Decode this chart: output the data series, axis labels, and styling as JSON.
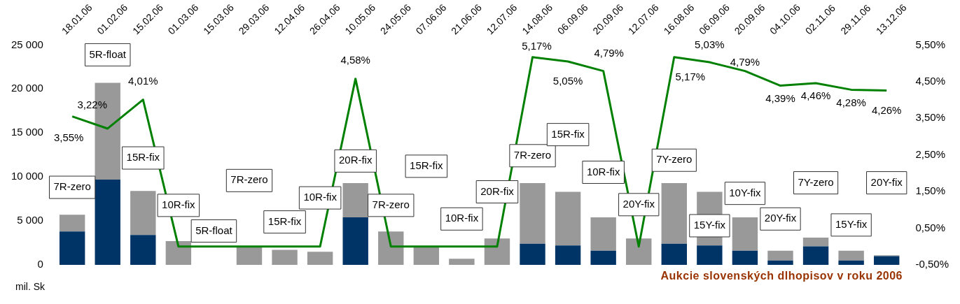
{
  "chart_data": {
    "type": "bar",
    "title": "Aukcie slovenských dlhopisov v roku 2006",
    "ylabel": "mil. Sk",
    "categories": [
      "18.01.06",
      "01.02.06",
      "15.02.06",
      "01.03.06",
      "15.03.06",
      "29.03.06",
      "12.04.06",
      "26.04.06",
      "10.05.06",
      "24.05.06",
      "07.06.06",
      "21.06.06",
      "12.07.06",
      "14.08.06",
      "06.09.06",
      "20.09.06",
      "12.07.06",
      "16.08.06",
      "06.09.06",
      "20.09.06",
      "04.10.06",
      "02.11.06",
      "29.11.06",
      "13.12.06"
    ],
    "stacked": true,
    "series": [
      {
        "color": "#003366",
        "values": [
          3800,
          9700,
          3400,
          0,
          null,
          0,
          0,
          0,
          5400,
          0,
          0,
          0,
          0,
          2400,
          2200,
          1600,
          0,
          2400,
          2200,
          1600,
          500,
          2100,
          500,
          1000
        ]
      },
      {
        "color": "#999999",
        "values": [
          1900,
          11000,
          5000,
          2700,
          null,
          2100,
          1700,
          1500,
          3900,
          3800,
          2000,
          700,
          3000,
          6900,
          6100,
          3800,
          3000,
          6900,
          6100,
          3800,
          1100,
          1000,
          1100,
          100
        ]
      },
      {
        "type": "line",
        "axis": "y2",
        "color": "#008000",
        "values": [
          3.55,
          3.22,
          4.01,
          0,
          0,
          0,
          0,
          0,
          4.58,
          0,
          0,
          0,
          0,
          5.17,
          5.05,
          4.79,
          0,
          5.17,
          5.03,
          4.79,
          4.39,
          4.46,
          4.28,
          4.26
        ],
        "value_labels": [
          "3,55%",
          "3,22%",
          "4,01%",
          null,
          null,
          null,
          null,
          null,
          "4,58%",
          null,
          null,
          null,
          null,
          "5,17%",
          "5,05%",
          "4,79%",
          null,
          "5,17%",
          "5,03%",
          "4,79%",
          "4,39%",
          "4,46%",
          "4,28%",
          "4,26%"
        ]
      }
    ],
    "ylim": [
      0,
      25000
    ],
    "yticks": [
      0,
      {
        "value": 5000,
        "label": "5 000"
      },
      {
        "value": 10000,
        "label": "10 000"
      },
      {
        "value": 15000,
        "label": "15 000"
      },
      {
        "value": 20000,
        "label": "20 000"
      },
      {
        "value": 25000,
        "label": "25 000"
      }
    ],
    "y2lim": [
      -0.5,
      5.5
    ],
    "y2ticks": [
      {
        "value": -0.5,
        "label": "-0,50%"
      },
      {
        "value": 0.5,
        "label": "0,50%"
      },
      {
        "value": 1.5,
        "label": "1,50%"
      },
      {
        "value": 2.5,
        "label": "2,50%"
      },
      {
        "value": 3.5,
        "label": "3,50%"
      },
      {
        "value": 4.5,
        "label": "4,50%"
      },
      {
        "value": 5.5,
        "label": "5,50%"
      }
    ],
    "annotations": [
      "7R-zero",
      "5R-float",
      "15R-fix",
      "10R-fix",
      "5R-float",
      "7R-zero",
      "15R-fix",
      "10R-fix",
      "20R-fix",
      "7R-zero",
      "15R-fix",
      "10R-fix",
      "20R-fix",
      "7R-zero",
      "15R-fix",
      "10R-fix",
      "20Y-fix",
      "7Y-zero",
      "15Y-fix",
      "10Y-fix",
      "20Y-fix",
      "7Y-zero",
      "15Y-fix",
      "20Y-fix"
    ],
    "grid": false,
    "legend": false,
    "marker": "none"
  }
}
